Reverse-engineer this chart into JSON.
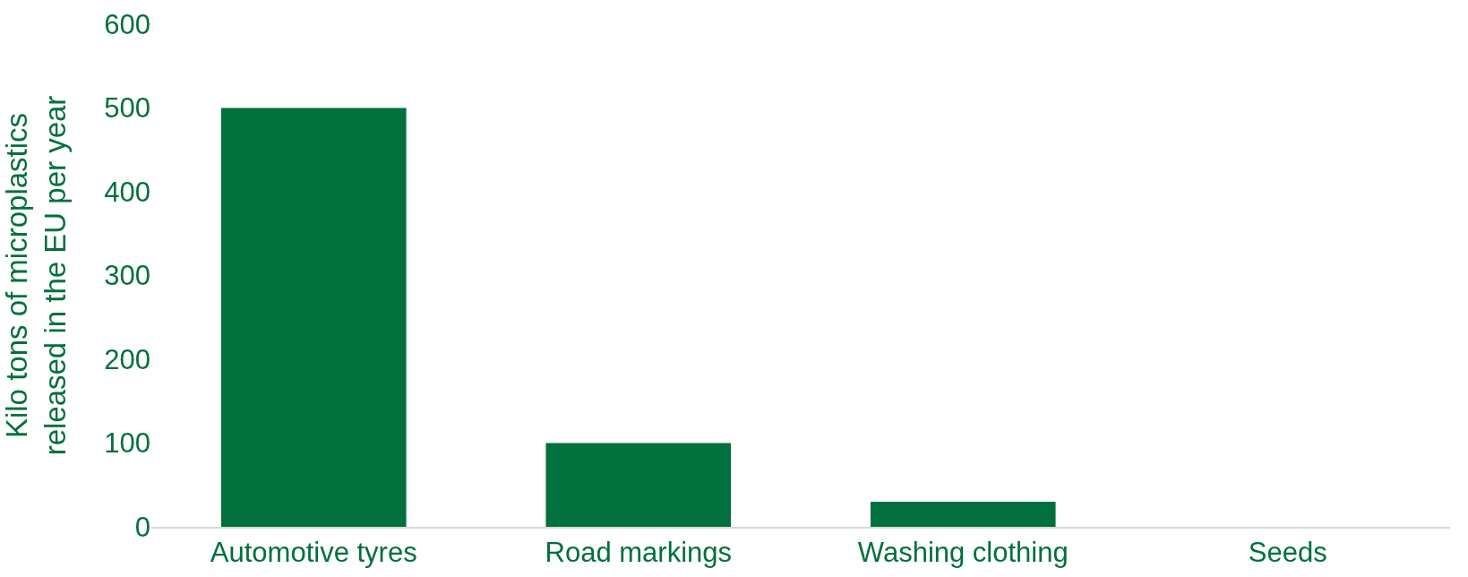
{
  "chart_data": {
    "type": "bar",
    "ylabel": "Kilo tons of microplastics\nreleased in the EU per year",
    "categories": [
      "Automotive tyres",
      "Road markings",
      "Washing clothing",
      "Seeds"
    ],
    "values": [
      500,
      100,
      30,
      0
    ],
    "color": "#00703c",
    "ylim": [
      0,
      600
    ],
    "yticks": [
      0,
      100,
      200,
      300,
      400,
      500,
      600
    ]
  }
}
